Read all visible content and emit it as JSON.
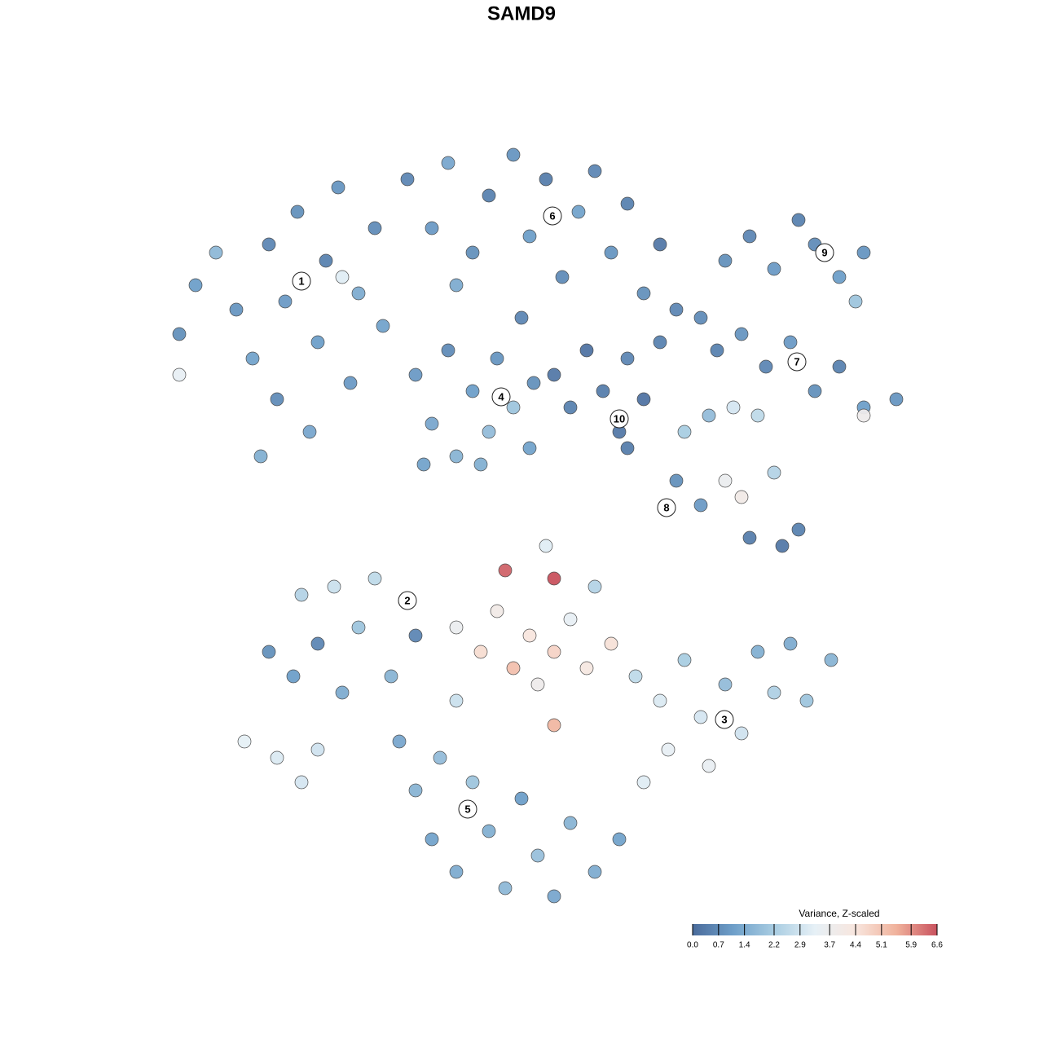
{
  "chart_data": {
    "type": "scatter",
    "title": "SAMD9",
    "xlim": [
      -12.8,
      12.8
    ],
    "ylim": [
      -12.8,
      12.8
    ],
    "x": [
      -8.4,
      -8.0,
      -7.5,
      -7.0,
      -6.6,
      -6.2,
      -6.0,
      -5.8,
      -5.5,
      -5.2,
      -5.0,
      -4.8,
      -4.5,
      -4.2,
      -4.0,
      -3.6,
      -3.4,
      -8.4,
      -4.4,
      -6.4,
      -2.8,
      -2.2,
      -1.8,
      -1.2,
      -0.8,
      -0.2,
      0.2,
      0.6,
      1.0,
      1.4,
      1.8,
      2.2,
      2.6,
      3.0,
      3.4,
      3.8,
      -1.6,
      0.0,
      -2.6,
      -2.2,
      -1.8,
      -1.6,
      -1.2,
      -0.8,
      -0.6,
      -0.2,
      0.2,
      0.3,
      -2.4,
      -1.0,
      0.8,
      1.2,
      1.6,
      2.0,
      2.4,
      2.6,
      3.0,
      2.6,
      3.4,
      5.0,
      5.6,
      6.2,
      6.8,
      7.2,
      7.8,
      8.4,
      8.2,
      4.4,
      4.8,
      5.4,
      6.0,
      6.6,
      7.2,
      7.8,
      8.4,
      9.2,
      8.4,
      4.0,
      4.6,
      5.2,
      5.8,
      3.8,
      4.4,
      5.0,
      5.4,
      6.2,
      5.6,
      6.4,
      6.8,
      -6.2,
      -5.6,
      -5.0,
      -5.4,
      -4.6,
      -4.0,
      -3.6,
      -3.2,
      -2.6,
      -4.4,
      -6.8,
      -6.0,
      -5.4,
      -5.0,
      -1.6,
      -1.0,
      -0.6,
      -0.4,
      -0.2,
      0.2,
      0.4,
      0.8,
      0.8,
      1.2,
      1.6,
      1.8,
      2.2,
      0.8,
      -1.6,
      0.6,
      2.8,
      3.4,
      3.6,
      4.0,
      4.4,
      4.6,
      5.0,
      5.4,
      5.8,
      6.2,
      6.6,
      7.0,
      7.6,
      3.0,
      -3.0,
      -2.6,
      -2.2,
      -2.0,
      -1.6,
      -1.2,
      -0.8,
      -0.4,
      0.0,
      0.4,
      0.8,
      1.2,
      1.8,
      2.4
    ],
    "y": [
      4.6,
      5.8,
      6.6,
      5.2,
      4.0,
      6.8,
      3.0,
      5.4,
      7.6,
      2.2,
      4.4,
      6.4,
      8.2,
      3.4,
      5.6,
      7.2,
      4.8,
      3.6,
      6.0,
      1.6,
      8.4,
      7.2,
      8.8,
      6.6,
      8.0,
      9.0,
      7.0,
      8.4,
      6.0,
      7.6,
      8.6,
      6.6,
      7.8,
      5.6,
      6.8,
      5.2,
      5.8,
      5.0,
      3.6,
      2.4,
      4.2,
      1.6,
      3.2,
      2.2,
      4.0,
      2.8,
      1.8,
      3.4,
      1.4,
      1.4,
      3.6,
      2.8,
      4.2,
      3.2,
      2.2,
      4.0,
      3.0,
      1.8,
      4.4,
      6.4,
      7.0,
      6.2,
      7.4,
      6.8,
      6.0,
      6.6,
      5.4,
      5.0,
      4.2,
      4.6,
      3.8,
      4.4,
      3.2,
      3.8,
      2.8,
      3.0,
      2.6,
      2.2,
      2.6,
      2.8,
      2.6,
      1.0,
      0.4,
      1.0,
      0.6,
      1.2,
      -0.4,
      -0.6,
      -0.2,
      -3.2,
      -3.8,
      -3.0,
      -1.8,
      -1.6,
      -2.6,
      -1.4,
      -3.8,
      -2.8,
      -4.2,
      -5.4,
      -5.8,
      -6.4,
      -5.6,
      -2.6,
      -3.2,
      -2.2,
      -1.2,
      -3.6,
      -2.8,
      -4.0,
      -1.4,
      -3.2,
      -2.4,
      -3.6,
      -1.6,
      -3.0,
      -5.0,
      -4.4,
      -0.6,
      -3.8,
      -4.4,
      -5.6,
      -3.4,
      -4.8,
      -6.0,
      -4.0,
      -5.2,
      -3.2,
      -4.2,
      -3.0,
      -4.4,
      -3.4,
      -6.4,
      -5.4,
      -6.6,
      -7.8,
      -5.8,
      -8.6,
      -6.4,
      -7.6,
      -9.0,
      -6.8,
      -8.2,
      -9.2,
      -7.4,
      -8.6,
      -7.8
    ],
    "values": [
      0.8,
      1.1,
      1.7,
      0.9,
      1.2,
      0.6,
      0.7,
      1.0,
      0.8,
      1.3,
      1.1,
      0.5,
      0.9,
      1.0,
      1.4,
      0.7,
      1.2,
      3.4,
      3.2,
      1.5,
      0.6,
      1.0,
      1.3,
      0.8,
      0.5,
      0.9,
      1.1,
      0.4,
      0.7,
      1.2,
      0.6,
      0.9,
      0.5,
      0.8,
      0.3,
      0.6,
      1.4,
      0.6,
      1.0,
      1.3,
      0.7,
      1.6,
      1.1,
      1.8,
      0.9,
      2.0,
      1.2,
      0.8,
      1.2,
      1.5,
      0.3,
      0.5,
      0.2,
      0.4,
      0.3,
      0.6,
      0.2,
      0.4,
      0.5,
      0.8,
      0.6,
      1.0,
      0.5,
      0.7,
      1.1,
      0.9,
      2.0,
      0.7,
      0.5,
      0.9,
      0.6,
      1.0,
      0.8,
      0.5,
      1.1,
      0.9,
      3.8,
      2.2,
      1.8,
      3.0,
      2.6,
      0.8,
      1.0,
      3.6,
      4.0,
      2.4,
      0.4,
      0.3,
      0.5,
      0.8,
      1.1,
      0.6,
      2.4,
      2.8,
      2.0,
      2.6,
      1.6,
      0.6,
      1.4,
      3.3,
      3.1,
      3.0,
      2.9,
      3.6,
      4.6,
      4.0,
      6.4,
      5.2,
      4.4,
      3.8,
      6.6,
      4.8,
      3.4,
      4.2,
      2.4,
      4.5,
      5.4,
      2.8,
      3.2,
      2.6,
      3.1,
      3.4,
      2.2,
      3.0,
      3.5,
      1.8,
      2.9,
      1.5,
      2.3,
      1.4,
      2.0,
      1.6,
      3.2,
      1.3,
      1.6,
      1.2,
      1.8,
      1.4,
      2.0,
      1.5,
      1.7,
      1.1,
      1.9,
      1.3,
      1.6,
      1.4,
      1.2
    ],
    "clusters": [
      {
        "label": "1",
        "x": -5.4,
        "y": 5.9
      },
      {
        "label": "2",
        "x": -2.8,
        "y": -1.94
      },
      {
        "label": "3",
        "x": 4.98,
        "y": -4.86
      },
      {
        "label": "4",
        "x": -0.5,
        "y": 3.06
      },
      {
        "label": "5",
        "x": -1.32,
        "y": -7.06
      },
      {
        "label": "6",
        "x": 0.76,
        "y": 7.5
      },
      {
        "label": "7",
        "x": 6.76,
        "y": 3.92
      },
      {
        "label": "8",
        "x": 3.56,
        "y": 0.34
      },
      {
        "label": "9",
        "x": 7.44,
        "y": 6.6
      },
      {
        "label": "10",
        "x": 2.4,
        "y": 2.52
      }
    ],
    "colorbar": {
      "title": "Variance, Z-scaled",
      "lim": [
        0,
        6.6
      ],
      "colors": [
        "#4a6b9b",
        "#6e9fc9",
        "#a9cde2",
        "#e6f0f6",
        "#f8e6de",
        "#f0b29c",
        "#c9525e"
      ],
      "ticks": [
        {
          "value": 0,
          "label": "0.0"
        },
        0.7,
        1.4,
        2.2,
        2.9,
        3.7,
        4.4,
        5.1,
        5.9,
        6.6
      ]
    }
  }
}
